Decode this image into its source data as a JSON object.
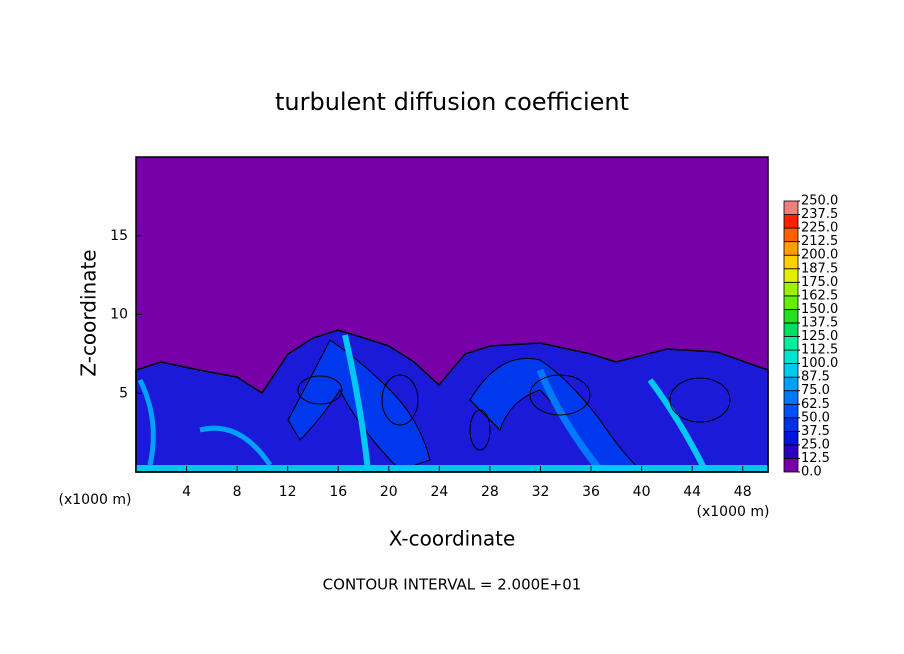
{
  "chart_data": {
    "type": "contour",
    "title": "turbulent diffusion coefficient",
    "x_label": "X-coordinate",
    "y_label": "Z-coordinate",
    "x_unit": "(x1000 m)",
    "y_unit": "(x1000 m)",
    "annotation": "CONTOUR INTERVAL = 2.000E+01",
    "xlim": [
      0,
      50
    ],
    "xticks": [
      4,
      8,
      12,
      16,
      20,
      24,
      28,
      32,
      36,
      40,
      44,
      48
    ],
    "ylim": [
      0,
      20
    ],
    "yticks": [
      5,
      10,
      15
    ],
    "colorbar": {
      "levels": [
        {
          "value": 0,
          "label": "0.0"
        },
        12.5,
        {
          "value": 25,
          "label": "25.0"
        },
        37.5,
        {
          "value": 50,
          "label": "50.0"
        },
        62.5,
        {
          "value": 75,
          "label": "75.0"
        },
        87.5,
        {
          "value": 100,
          "label": "100.0"
        },
        112.5,
        {
          "value": 125,
          "label": "125.0"
        },
        137.5,
        {
          "value": 150,
          "label": "150.0"
        },
        162.5,
        {
          "value": 175,
          "label": "175.0"
        },
        187.5,
        {
          "value": 200,
          "label": "200.0"
        },
        212.5,
        {
          "value": 225,
          "label": "225.0"
        },
        237.5,
        {
          "value": 250,
          "label": "250.0"
        }
      ],
      "colors": [
        "#7800a8",
        "#2a00c4",
        "#0012dc",
        "#0030ee",
        "#0050f8",
        "#0078ff",
        "#00a0ff",
        "#00c8f0",
        "#00e4d0",
        "#00f0a0",
        "#00e060",
        "#20e020",
        "#60f000",
        "#a0f000",
        "#e0f000",
        "#ffd000",
        "#ffa000",
        "#ff6000",
        "#ff2000",
        "#f08080"
      ]
    }
  }
}
